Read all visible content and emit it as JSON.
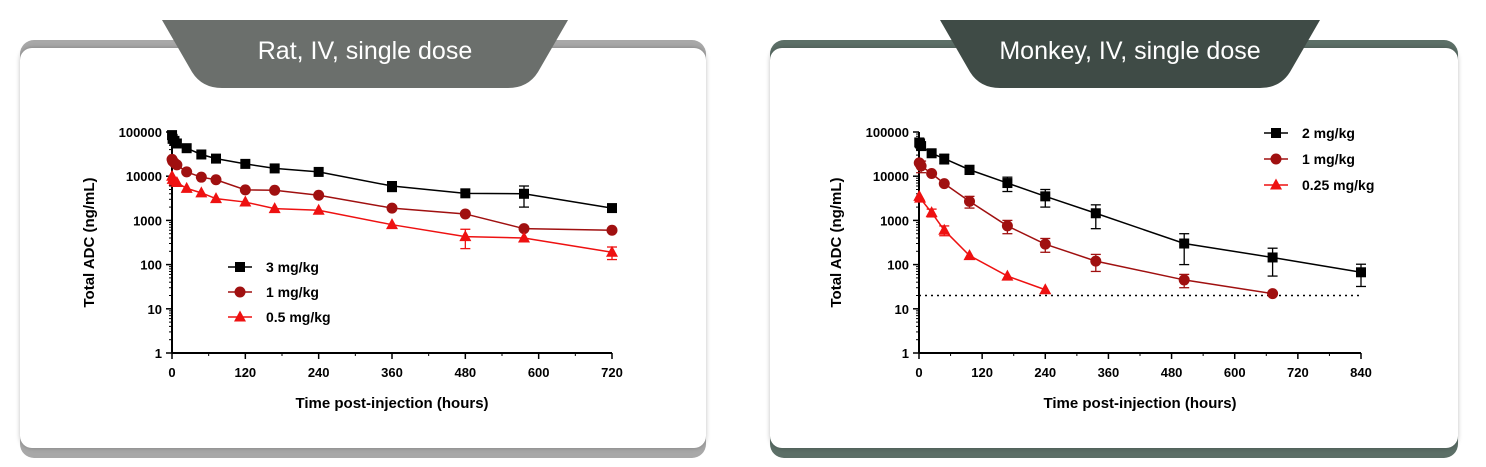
{
  "chart_data": [
    {
      "type": "scatter",
      "title": "Rat, IV, single dose",
      "xlabel": "Time post-injection (hours)",
      "ylabel": "Total ADC (ng/mL)",
      "yscale": "log",
      "xlim": [
        0,
        720
      ],
      "ylim": [
        1,
        100000
      ],
      "xticks": [
        0,
        120,
        240,
        360,
        480,
        600,
        720
      ],
      "yticks": [
        1,
        10,
        100,
        1000,
        10000,
        100000
      ],
      "legend_position": "lower-left",
      "series": [
        {
          "name": "3 mg/kg",
          "color": "#000000",
          "marker": "square",
          "x": [
            0.08,
            1,
            4,
            8,
            24,
            48,
            72,
            120,
            168,
            240,
            360,
            480,
            576,
            720
          ],
          "y": [
            85000,
            70000,
            63000,
            55000,
            43000,
            31000,
            25000,
            19000,
            15000,
            12500,
            6000,
            4100,
            4000,
            1900
          ],
          "err": [
            null,
            null,
            null,
            null,
            null,
            null,
            null,
            null,
            null,
            null,
            1500,
            null,
            2000,
            null
          ]
        },
        {
          "name": "1 mg/kg",
          "color": "#a01010",
          "marker": "circle",
          "x": [
            0.08,
            1,
            4,
            8,
            24,
            48,
            72,
            120,
            168,
            240,
            360,
            480,
            576,
            720
          ],
          "y": [
            24000,
            22000,
            20000,
            18000,
            12500,
            9500,
            8300,
            4900,
            4800,
            3700,
            1900,
            1400,
            650,
            600
          ],
          "err": [
            null,
            null,
            null,
            null,
            null,
            null,
            null,
            null,
            null,
            null,
            null,
            null,
            null,
            null
          ]
        },
        {
          "name": "0.5 mg/kg",
          "color": "#ee1111",
          "marker": "triangle",
          "x": [
            0.08,
            1,
            4,
            8,
            24,
            48,
            72,
            120,
            168,
            240,
            360,
            480,
            576,
            720
          ],
          "y": [
            10000,
            8500,
            7800,
            7200,
            5300,
            4200,
            3100,
            2600,
            1850,
            1700,
            800,
            430,
            400,
            190
          ],
          "err": [
            null,
            null,
            null,
            null,
            null,
            null,
            null,
            null,
            null,
            null,
            null,
            200,
            null,
            60
          ]
        }
      ],
      "lloq": null,
      "colors": {
        "tab": "#6b6f6c",
        "band": "#a8a8a8"
      }
    },
    {
      "type": "scatter",
      "title": "Monkey, IV, single dose",
      "xlabel": "Time post-injection (hours)",
      "ylabel": "Total ADC (ng/mL)",
      "yscale": "log",
      "xlim": [
        0,
        840
      ],
      "ylim": [
        1,
        100000
      ],
      "xticks": [
        0,
        120,
        240,
        360,
        480,
        600,
        720,
        840
      ],
      "yticks": [
        1,
        10,
        100,
        1000,
        10000,
        100000
      ],
      "legend_position": "top-right",
      "series": [
        {
          "name": "2 mg/kg",
          "color": "#000000",
          "marker": "square",
          "x": [
            0.5,
            2,
            4,
            24,
            48,
            96,
            168,
            240,
            336,
            504,
            672,
            840
          ],
          "y": [
            58000,
            55000,
            48000,
            33000,
            25000,
            14000,
            7000,
            3500,
            1450,
            300,
            145,
            67
          ],
          "err": [
            null,
            null,
            null,
            null,
            6000,
            3000,
            2500,
            1500,
            800,
            200,
            90,
            35
          ]
        },
        {
          "name": "1 mg/kg",
          "color": "#a01010",
          "marker": "circle",
          "x": [
            0.5,
            2,
            4,
            24,
            48,
            96,
            168,
            240,
            336,
            504,
            672
          ],
          "y": [
            20000,
            19000,
            17000,
            11500,
            6800,
            2700,
            750,
            290,
            120,
            45,
            22
          ],
          "err": [
            null,
            null,
            5000,
            null,
            null,
            800,
            250,
            100,
            50,
            15,
            null
          ]
        },
        {
          "name": "0.25 mg/kg",
          "color": "#ee1111",
          "marker": "triangle",
          "x": [
            0.5,
            2,
            24,
            48,
            96,
            168,
            240
          ],
          "y": [
            3500,
            3200,
            1500,
            600,
            160,
            55,
            27
          ],
          "err": [
            null,
            null,
            300,
            150,
            null,
            null,
            null
          ]
        }
      ],
      "lloq": 20,
      "colors": {
        "tab": "#3f4b46",
        "band": "#5c6f67"
      }
    }
  ]
}
